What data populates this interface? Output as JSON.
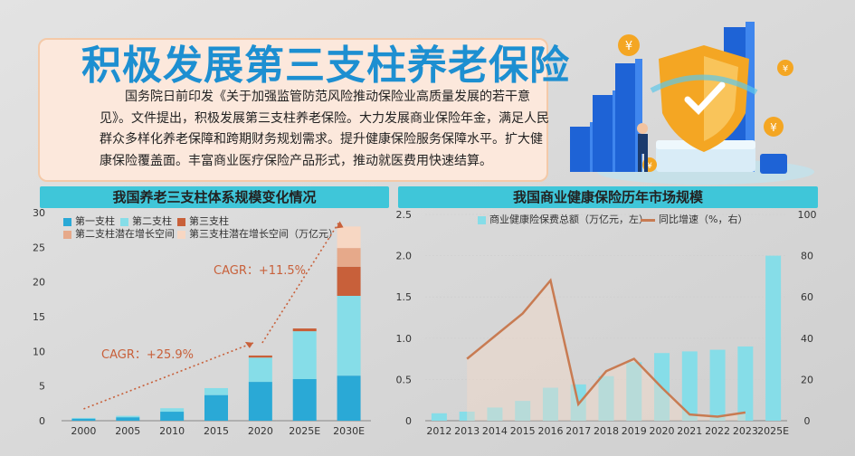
{
  "colors": {
    "primary": "#3fc6d9",
    "headline": "#1d8fd1",
    "first_pillar": "#2aa9d6",
    "second_pillar": "#86dde8",
    "third_pillar": "#c8603a",
    "second_potential": "#e6a98a",
    "third_potential": "#f7d7c3",
    "health_bar": "#86dde8",
    "growth_line": "#c87b52",
    "cagr": "#c8603a"
  },
  "header": {
    "title": "积极发展第三支柱养老保险",
    "body": "国务院日前印发《关于加强监管防范风险推动保险业高质量发展的若干意见》。文件提出，积极发展第三支柱养老保险。大力发展商业保险年金，满足人民群众多样化养老保障和跨期财务规划需求。提升健康保险服务保障水平。扩大健康保险覆盖面。丰富商业医疗保险产品形式，推动就医费用快速结算。"
  },
  "illustration": {
    "icon": "shield-coin-chart-businessman-illustration"
  },
  "chart_data": [
    {
      "type": "bar",
      "title": "我国养老三支柱体系规模变化情况",
      "categories": [
        "2000",
        "2005",
        "2010",
        "2015",
        "2020",
        "2025E",
        "2030E"
      ],
      "series": [
        {
          "name": "第一支柱",
          "values": [
            0.3,
            0.5,
            1.3,
            3.7,
            5.6,
            6.0,
            6.5
          ]
        },
        {
          "name": "第二支柱",
          "values": [
            0.1,
            0.2,
            0.5,
            1.0,
            3.5,
            6.9,
            11.5
          ]
        },
        {
          "name": "第三支柱",
          "values": [
            0,
            0,
            0,
            0,
            0.3,
            0.4,
            4.2
          ]
        },
        {
          "name": "第二支柱潜在增长空间",
          "values": [
            0,
            0,
            0,
            0,
            0,
            0,
            2.7
          ]
        },
        {
          "name": "第三支柱潜在增长空间（万亿元）",
          "values": [
            0,
            0,
            0,
            0,
            0,
            0,
            3.1
          ]
        }
      ],
      "ylim": [
        0,
        30
      ],
      "yticks": [
        0,
        5,
        10,
        15,
        20,
        25,
        30
      ],
      "annotations": [
        "CAGR：+25.9%",
        "CAGR：+11.5%"
      ]
    },
    {
      "type": "bar",
      "title": "我国商业健康保险历年市场规模",
      "categories": [
        "2012",
        "2013",
        "2014",
        "2015",
        "2016",
        "2017",
        "2018",
        "2019",
        "2020",
        "2021",
        "2022",
        "2023",
        "2025E"
      ],
      "series": [
        {
          "name": "商业健康险保费总额（万亿元，左）",
          "values": [
            0.09,
            0.11,
            0.16,
            0.24,
            0.4,
            0.44,
            0.54,
            0.71,
            0.82,
            0.84,
            0.86,
            0.9,
            2.0
          ]
        },
        {
          "name": "同比增速（%，右）",
          "values": [
            null,
            30,
            41,
            52,
            68,
            8,
            24,
            30,
            16,
            3,
            2,
            4,
            null
          ]
        }
      ],
      "ylim_left": [
        0,
        2.5
      ],
      "ylim_right": [
        0,
        100
      ],
      "yticks_left": [
        "0",
        "0.5",
        "1.0",
        "1.5",
        "2.0",
        "2.5"
      ],
      "yticks_right": [
        "0",
        "20",
        "40",
        "60",
        "80",
        "100"
      ]
    }
  ]
}
